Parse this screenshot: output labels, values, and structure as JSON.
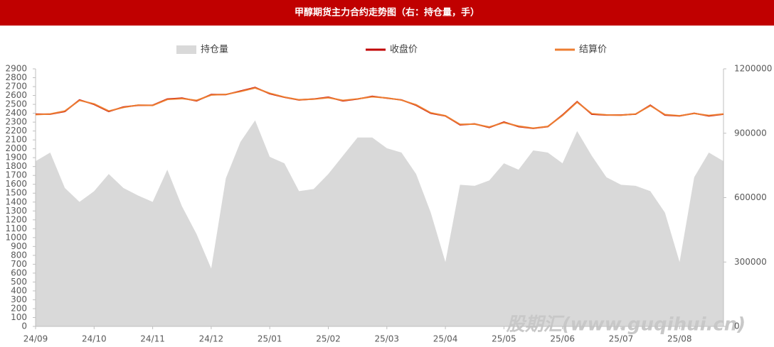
{
  "chart_data": {
    "type": "line-area",
    "title": "甲醇期货主力合约走势图（右：持仓量，手）",
    "watermark": "股期汇(www.guqihui.cn)",
    "categories": [
      "24/09",
      null,
      null,
      null,
      "24/10",
      null,
      null,
      null,
      "24/11",
      null,
      null,
      null,
      "24/12",
      null,
      null,
      null,
      "25/01",
      null,
      null,
      null,
      "25/02",
      null,
      null,
      null,
      "25/03",
      null,
      null,
      null,
      "25/04",
      null,
      null,
      null,
      "25/05",
      null,
      null,
      null,
      "25/06",
      null,
      null,
      null,
      "25/07",
      null,
      null,
      null,
      "25/08",
      null,
      null,
      null
    ],
    "series": [
      {
        "name": "持仓量",
        "color": "#d9d9d9",
        "axis": "y2",
        "kind": "area",
        "values": [
          770000,
          810000,
          645000,
          580000,
          630000,
          710000,
          645000,
          610000,
          580000,
          730000,
          560000,
          430000,
          270000,
          690000,
          860000,
          960000,
          790000,
          760000,
          630000,
          640000,
          710000,
          795000,
          880000,
          880000,
          830000,
          810000,
          710000,
          530000,
          300000,
          660000,
          655000,
          680000,
          760000,
          730000,
          820000,
          810000,
          760000,
          910000,
          795000,
          695000,
          660000,
          655000,
          630000,
          530000,
          300000,
          695000,
          810000,
          770000
        ]
      },
      {
        "name": "收盘价",
        "color": "#c00000",
        "kind": "line",
        "values": [
          2390,
          2390,
          2420,
          2550,
          2500,
          2420,
          2470,
          2490,
          2490,
          2560,
          2570,
          2540,
          2610,
          2610,
          2650,
          2690,
          2620,
          2580,
          2550,
          2560,
          2580,
          2540,
          2560,
          2590,
          2570,
          2550,
          2490,
          2400,
          2370,
          2270,
          2280,
          2240,
          2300,
          2250,
          2230,
          2250,
          2380,
          2530,
          2390,
          2380,
          2380,
          2390,
          2490,
          2380,
          2370,
          2400,
          2370,
          2390
        ]
      },
      {
        "name": "结算价",
        "color": "#ed7d31",
        "kind": "line",
        "values": [
          2385,
          2392,
          2425,
          2545,
          2505,
          2425,
          2465,
          2492,
          2488,
          2555,
          2565,
          2545,
          2605,
          2612,
          2645,
          2685,
          2625,
          2582,
          2552,
          2558,
          2575,
          2545,
          2562,
          2585,
          2572,
          2548,
          2495,
          2405,
          2372,
          2275,
          2278,
          2245,
          2295,
          2255,
          2232,
          2252,
          2375,
          2525,
          2395,
          2382,
          2378,
          2392,
          2485,
          2385,
          2372,
          2398,
          2375,
          2392
        ]
      }
    ],
    "ylim": [
      0,
      2900
    ],
    "yticks": [
      0,
      100,
      200,
      300,
      400,
      500,
      600,
      700,
      800,
      900,
      1000,
      1100,
      1200,
      1300,
      1400,
      1500,
      1600,
      1700,
      1800,
      1900,
      2000,
      2100,
      2200,
      2300,
      2400,
      2500,
      2600,
      2700,
      2800,
      2900
    ],
    "y2lim": [
      0,
      1200000
    ],
    "y2ticks": [
      0,
      300000,
      600000,
      900000,
      1200000
    ],
    "grid": false,
    "legend": "top"
  }
}
